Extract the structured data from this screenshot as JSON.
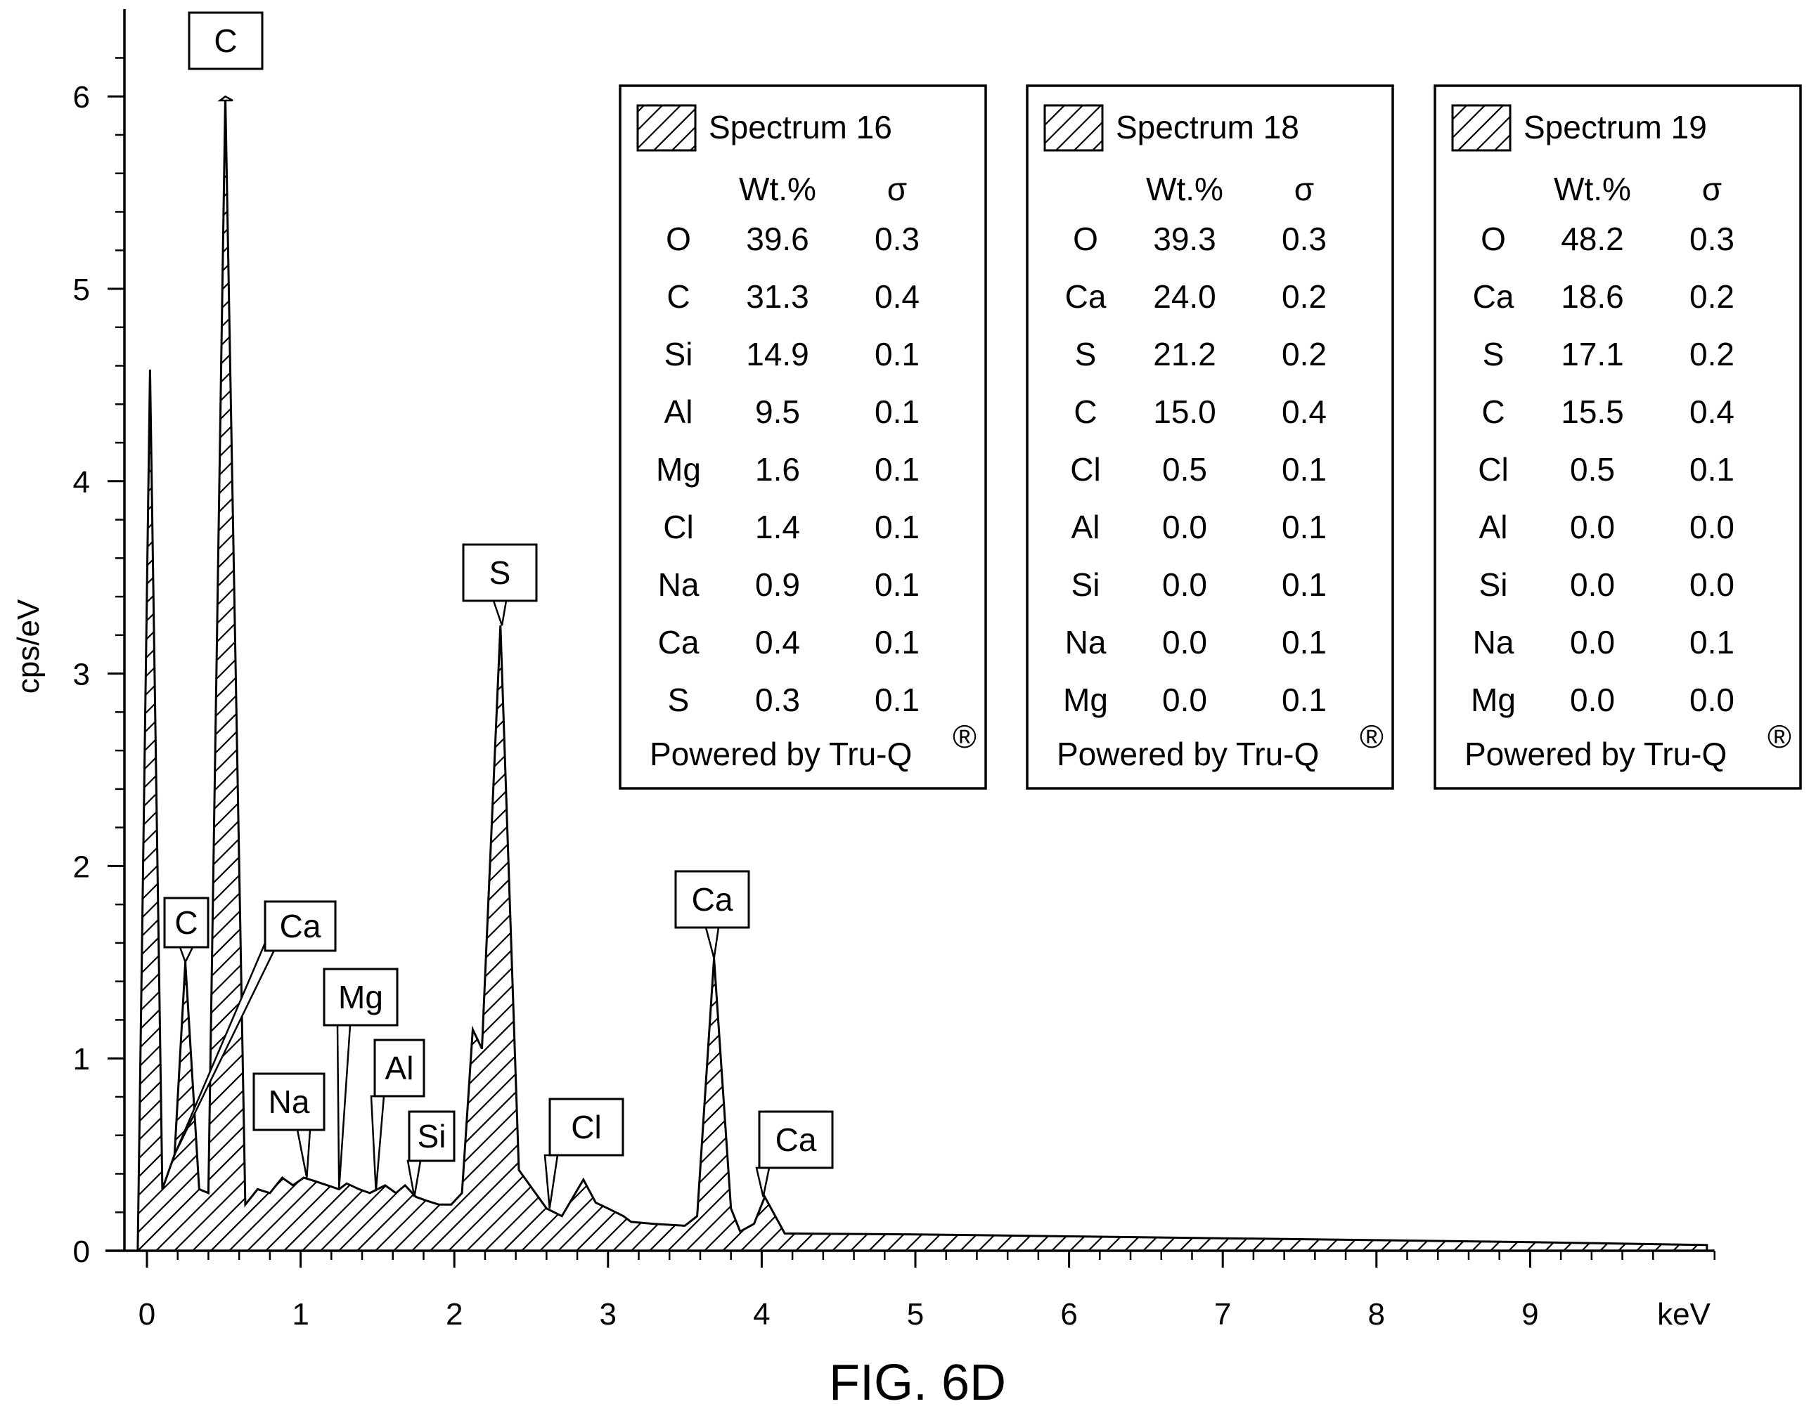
{
  "caption": "FIG. 6D",
  "chart_data": {
    "type": "area",
    "ylabel": "cps/eV",
    "x_unit": "keV",
    "xlim": [
      0,
      10.2
    ],
    "ylim": [
      0,
      6.3
    ],
    "x_ticks": [
      "0",
      "1",
      "2",
      "3",
      "4",
      "5",
      "6",
      "7",
      "8",
      "9"
    ],
    "y_ticks": [
      "0",
      "1",
      "2",
      "3",
      "4",
      "5",
      "6"
    ],
    "x_tick_values": [
      0,
      1,
      2,
      3,
      4,
      5,
      6,
      7,
      8,
      9
    ],
    "y_tick_values": [
      0,
      1,
      2,
      3,
      4,
      5,
      6
    ],
    "grid": false,
    "fill_pattern": "diagonal-hatch",
    "spectrum": [
      [
        -0.06,
        0
      ],
      [
        0.02,
        4.58
      ],
      [
        0.1,
        0.32
      ],
      [
        0.18,
        0.5
      ],
      [
        0.25,
        1.5
      ],
      [
        0.34,
        0.32
      ],
      [
        0.4,
        0.3
      ],
      [
        0.51,
        6.0
      ],
      [
        0.64,
        0.24
      ],
      [
        0.72,
        0.32
      ],
      [
        0.8,
        0.3
      ],
      [
        0.88,
        0.38
      ],
      [
        0.95,
        0.34
      ],
      [
        1.02,
        0.38
      ],
      [
        1.1,
        0.36
      ],
      [
        1.25,
        0.32
      ],
      [
        1.3,
        0.35
      ],
      [
        1.38,
        0.32
      ],
      [
        1.45,
        0.3
      ],
      [
        1.55,
        0.34
      ],
      [
        1.62,
        0.3
      ],
      [
        1.68,
        0.34
      ],
      [
        1.75,
        0.28
      ],
      [
        1.82,
        0.26
      ],
      [
        1.9,
        0.24
      ],
      [
        1.98,
        0.24
      ],
      [
        2.05,
        0.3
      ],
      [
        2.12,
        1.15
      ],
      [
        2.18,
        1.05
      ],
      [
        2.3,
        3.25
      ],
      [
        2.42,
        0.42
      ],
      [
        2.6,
        0.22
      ],
      [
        2.7,
        0.18
      ],
      [
        2.84,
        0.37
      ],
      [
        2.92,
        0.25
      ],
      [
        3.0,
        0.22
      ],
      [
        3.1,
        0.18
      ],
      [
        3.15,
        0.15
      ],
      [
        3.3,
        0.14
      ],
      [
        3.5,
        0.13
      ],
      [
        3.58,
        0.18
      ],
      [
        3.69,
        1.52
      ],
      [
        3.8,
        0.22
      ],
      [
        3.86,
        0.1
      ],
      [
        3.95,
        0.14
      ],
      [
        4.02,
        0.28
      ],
      [
        4.15,
        0.09
      ],
      [
        5,
        0.085
      ],
      [
        6,
        0.075
      ],
      [
        7,
        0.065
      ],
      [
        8,
        0.055
      ],
      [
        9,
        0.045
      ],
      [
        10.15,
        0.03
      ],
      [
        10.15,
        0
      ]
    ],
    "peak_labels": [
      {
        "element": "C",
        "energy": 0.51,
        "y": 6.0
      },
      {
        "element": "C",
        "energy": 0.25,
        "y": 1.5
      },
      {
        "element": "Ca",
        "energy": 0.18,
        "y": 0.5
      },
      {
        "element": "Na",
        "energy": 1.04,
        "y": 0.38
      },
      {
        "element": "Mg",
        "energy": 1.25,
        "y": 0.32
      },
      {
        "element": "Al",
        "energy": 1.49,
        "y": 0.31
      },
      {
        "element": "Si",
        "energy": 1.74,
        "y": 0.28
      },
      {
        "element": "S",
        "energy": 2.31,
        "y": 3.25
      },
      {
        "element": "Cl",
        "energy": 2.62,
        "y": 0.22
      },
      {
        "element": "Ca",
        "energy": 3.69,
        "y": 1.52
      },
      {
        "element": "Ca",
        "energy": 4.01,
        "y": 0.28
      }
    ],
    "legend_tables": [
      {
        "name": "Spectrum 16",
        "col_headers": [
          "Wt.%",
          "σ"
        ],
        "rows": [
          [
            "O",
            "39.6",
            "0.3"
          ],
          [
            "C",
            "31.3",
            "0.4"
          ],
          [
            "Si",
            "14.9",
            "0.1"
          ],
          [
            "Al",
            "9.5",
            "0.1"
          ],
          [
            "Mg",
            "1.6",
            "0.1"
          ],
          [
            "Cl",
            "1.4",
            "0.1"
          ],
          [
            "Na",
            "0.9",
            "0.1"
          ],
          [
            "Ca",
            "0.4",
            "0.1"
          ],
          [
            "S",
            "0.3",
            "0.1"
          ]
        ],
        "footer": "Powered by Tru-Q",
        "footer_mark": "®"
      },
      {
        "name": "Spectrum 18",
        "col_headers": [
          "Wt.%",
          "σ"
        ],
        "rows": [
          [
            "O",
            "39.3",
            "0.3"
          ],
          [
            "Ca",
            "24.0",
            "0.2"
          ],
          [
            "S",
            "21.2",
            "0.2"
          ],
          [
            "C",
            "15.0",
            "0.4"
          ],
          [
            "Cl",
            "0.5",
            "0.1"
          ],
          [
            "Al",
            "0.0",
            "0.1"
          ],
          [
            "Si",
            "0.0",
            "0.1"
          ],
          [
            "Na",
            "0.0",
            "0.1"
          ],
          [
            "Mg",
            "0.0",
            "0.1"
          ]
        ],
        "footer": "Powered by Tru-Q",
        "footer_mark": "®"
      },
      {
        "name": "Spectrum 19",
        "col_headers": [
          "Wt.%",
          "σ"
        ],
        "rows": [
          [
            "O",
            "48.2",
            "0.3"
          ],
          [
            "Ca",
            "18.6",
            "0.2"
          ],
          [
            "S",
            "17.1",
            "0.2"
          ],
          [
            "C",
            "15.5",
            "0.4"
          ],
          [
            "Cl",
            "0.5",
            "0.1"
          ],
          [
            "Al",
            "0.0",
            "0.0"
          ],
          [
            "Si",
            "0.0",
            "0.0"
          ],
          [
            "Na",
            "0.0",
            "0.1"
          ],
          [
            "Mg",
            "0.0",
            "0.0"
          ]
        ],
        "footer": "Powered by Tru-Q",
        "footer_mark": "®"
      }
    ]
  }
}
